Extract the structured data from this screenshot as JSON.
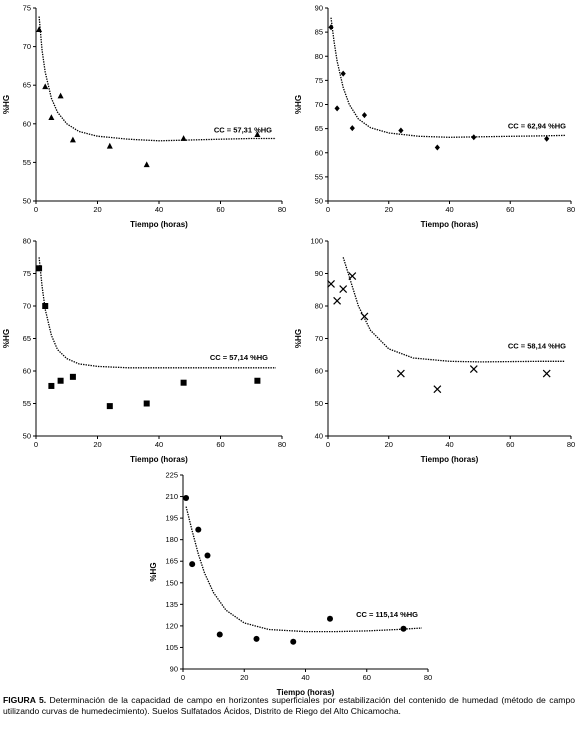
{
  "caption": {
    "label": "FIGURA 5.",
    "text": "Determinación de la capacidad de campo en horizontes superficiales por estabilización del contenido de humedad (método de campo utilizando curvas de humedecimiento). Suelos Sulfatados Ácidos, Distrito de Riego del Alto Chicamocha."
  },
  "chart_data": [
    {
      "type": "scatter",
      "marker": "triangle",
      "xlabel": "Tiempo (horas)",
      "ylabel": "%HG",
      "xlim": [
        0,
        80
      ],
      "ylim": [
        50,
        75
      ],
      "xticks": [
        0,
        20,
        40,
        60,
        80
      ],
      "yticks": [
        50,
        55,
        60,
        65,
        70,
        75
      ],
      "cc_label": "CC = 57,31 %HG",
      "points": [
        [
          1,
          72.2
        ],
        [
          3,
          64.8
        ],
        [
          5,
          60.8
        ],
        [
          8,
          63.6
        ],
        [
          12,
          57.9
        ],
        [
          24,
          57.1
        ],
        [
          36,
          54.7
        ],
        [
          48,
          58.1
        ],
        [
          72,
          58.6
        ]
      ],
      "curve": [
        [
          1,
          73.9
        ],
        [
          2,
          69.5
        ],
        [
          3,
          66.7
        ],
        [
          5,
          63.3
        ],
        [
          7,
          61.5
        ],
        [
          10,
          60.0
        ],
        [
          14,
          59.0
        ],
        [
          20,
          58.4
        ],
        [
          30,
          58.0
        ],
        [
          40,
          57.8
        ],
        [
          50,
          57.9
        ],
        [
          60,
          58.0
        ],
        [
          70,
          58.1
        ],
        [
          78,
          58.1
        ]
      ]
    },
    {
      "type": "scatter",
      "marker": "diamond",
      "xlabel": "Tiempo (horas)",
      "ylabel": "%HG",
      "xlim": [
        0,
        80
      ],
      "ylim": [
        50,
        90
      ],
      "xticks": [
        0,
        20,
        40,
        60,
        80
      ],
      "yticks": [
        50,
        55,
        60,
        65,
        70,
        75,
        80,
        85,
        90
      ],
      "cc_label": "CC = 62,94 %HG",
      "points": [
        [
          1,
          86.0
        ],
        [
          3,
          69.2
        ],
        [
          5,
          76.4
        ],
        [
          8,
          65.1
        ],
        [
          12,
          67.8
        ],
        [
          24,
          64.6
        ],
        [
          36,
          61.1
        ],
        [
          48,
          63.2
        ],
        [
          72,
          62.9
        ]
      ],
      "curve": [
        [
          1,
          88.0
        ],
        [
          2,
          83.0
        ],
        [
          3,
          79.0
        ],
        [
          5,
          73.5
        ],
        [
          7,
          70.0
        ],
        [
          10,
          67.0
        ],
        [
          14,
          65.2
        ],
        [
          20,
          64.1
        ],
        [
          30,
          63.4
        ],
        [
          40,
          63.2
        ],
        [
          50,
          63.3
        ],
        [
          60,
          63.4
        ],
        [
          70,
          63.5
        ],
        [
          78,
          63.6
        ]
      ]
    },
    {
      "type": "scatter",
      "marker": "square",
      "xlabel": "Tiempo (horas)",
      "ylabel": "%HG",
      "xlim": [
        0,
        80
      ],
      "ylim": [
        50,
        80
      ],
      "xticks": [
        0,
        20,
        40,
        60,
        80
      ],
      "yticks": [
        50,
        55,
        60,
        65,
        70,
        75,
        80
      ],
      "cc_label": "CC = 57,14 %HG",
      "points": [
        [
          1,
          75.8
        ],
        [
          3,
          70.0
        ],
        [
          5,
          57.7
        ],
        [
          8,
          58.5
        ],
        [
          12,
          59.1
        ],
        [
          24,
          54.6
        ],
        [
          36,
          55.0
        ],
        [
          48,
          58.2
        ],
        [
          72,
          58.5
        ]
      ],
      "curve": [
        [
          1,
          77.5
        ],
        [
          2,
          73.0
        ],
        [
          3,
          69.5
        ],
        [
          5,
          65.5
        ],
        [
          7,
          63.3
        ],
        [
          10,
          61.9
        ],
        [
          14,
          61.1
        ],
        [
          20,
          60.7
        ],
        [
          30,
          60.5
        ],
        [
          40,
          60.5
        ],
        [
          50,
          60.5
        ],
        [
          60,
          60.5
        ],
        [
          70,
          60.5
        ],
        [
          78,
          60.5
        ]
      ]
    },
    {
      "type": "scatter",
      "marker": "cross",
      "xlabel": "Tiempo (horas)",
      "ylabel": "%HG",
      "xlim": [
        0,
        80
      ],
      "ylim": [
        40,
        100
      ],
      "xticks": [
        0,
        20,
        40,
        60,
        80
      ],
      "yticks": [
        40,
        50,
        60,
        70,
        80,
        90,
        100
      ],
      "cc_label": "CC = 58,14 %HG",
      "points": [
        [
          1,
          86.8
        ],
        [
          3,
          81.6
        ],
        [
          5,
          85.2
        ],
        [
          8,
          89.2
        ],
        [
          12,
          76.8
        ],
        [
          24,
          59.2
        ],
        [
          36,
          54.4
        ],
        [
          48,
          60.6
        ],
        [
          72,
          59.2
        ]
      ],
      "curve": [
        [
          5,
          95.0
        ],
        [
          7,
          89.0
        ],
        [
          10,
          80.0
        ],
        [
          14,
          72.5
        ],
        [
          20,
          66.8
        ],
        [
          28,
          64.0
        ],
        [
          40,
          63.0
        ],
        [
          50,
          62.8
        ],
        [
          60,
          62.9
        ],
        [
          70,
          63.0
        ],
        [
          78,
          63.0
        ]
      ]
    },
    {
      "type": "scatter",
      "marker": "circle",
      "xlabel": "Tiempo (horas)",
      "ylabel": "%HG",
      "xlim": [
        0,
        80
      ],
      "ylim": [
        90,
        225
      ],
      "xticks": [
        0,
        20,
        40,
        60,
        80
      ],
      "yticks": [
        90,
        105,
        120,
        135,
        150,
        165,
        180,
        195,
        210,
        225
      ],
      "cc_label": "CC = 115,14 %HG",
      "points": [
        [
          1,
          209.0
        ],
        [
          3,
          163.0
        ],
        [
          5,
          187.0
        ],
        [
          8,
          169.0
        ],
        [
          12,
          114.0
        ],
        [
          24,
          111.0
        ],
        [
          36,
          109.0
        ],
        [
          48,
          125.0
        ],
        [
          72,
          118.0
        ]
      ],
      "curve": [
        [
          1,
          203.0
        ],
        [
          3,
          186.0
        ],
        [
          5,
          170.0
        ],
        [
          7,
          157.0
        ],
        [
          10,
          143.0
        ],
        [
          14,
          131.0
        ],
        [
          20,
          122.0
        ],
        [
          28,
          117.5
        ],
        [
          40,
          116.0
        ],
        [
          50,
          116.0
        ],
        [
          60,
          116.5
        ],
        [
          70,
          117.5
        ],
        [
          78,
          118.5
        ]
      ]
    }
  ]
}
